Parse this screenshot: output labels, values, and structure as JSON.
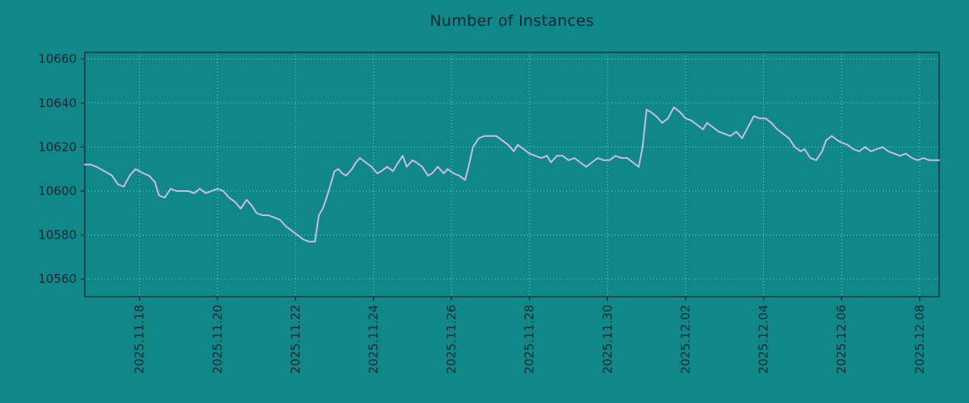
{
  "colors": {
    "background": "#108788",
    "line": "#c8baf0",
    "grid": "#aadcdc",
    "text": "#132730",
    "frame": "#132730"
  },
  "chart_data": {
    "type": "line",
    "title": "Number of Instances",
    "xlabel": "",
    "ylabel": "",
    "grid": true,
    "legend": null,
    "ylim": [
      10552,
      10663
    ],
    "xlim": [
      16.6,
      38.5
    ],
    "yticks": [
      10560,
      10580,
      10600,
      10620,
      10640,
      10660
    ],
    "xticks": [
      {
        "pos": 18,
        "label": "2025.11.18"
      },
      {
        "pos": 20,
        "label": "2025.11.20"
      },
      {
        "pos": 22,
        "label": "2025.11.22"
      },
      {
        "pos": 24,
        "label": "2025.11.24"
      },
      {
        "pos": 26,
        "label": "2025.11.26"
      },
      {
        "pos": 28,
        "label": "2025.11.28"
      },
      {
        "pos": 30,
        "label": "2025.11.30"
      },
      {
        "pos": 32,
        "label": "2025.12.02"
      },
      {
        "pos": 34,
        "label": "2025.12.04"
      },
      {
        "pos": 36,
        "label": "2025.12.06"
      },
      {
        "pos": 38,
        "label": "2025.12.08"
      }
    ],
    "series": [
      {
        "name": "instances",
        "x": [
          16.6,
          16.75,
          16.9,
          17.1,
          17.3,
          17.45,
          17.6,
          17.75,
          17.9,
          18.0,
          18.1,
          18.25,
          18.4,
          18.5,
          18.65,
          18.8,
          18.95,
          19.1,
          19.25,
          19.4,
          19.55,
          19.7,
          19.85,
          20.0,
          20.15,
          20.3,
          20.45,
          20.6,
          20.75,
          20.9,
          21.0,
          21.15,
          21.3,
          21.45,
          21.6,
          21.75,
          21.9,
          22.05,
          22.2,
          22.35,
          22.5,
          22.6,
          22.7,
          22.8,
          22.9,
          23.0,
          23.1,
          23.2,
          23.3,
          23.45,
          23.55,
          23.65,
          23.8,
          23.95,
          24.1,
          24.2,
          24.35,
          24.5,
          24.6,
          24.75,
          24.85,
          25.0,
          25.1,
          25.25,
          25.4,
          25.5,
          25.65,
          25.8,
          25.9,
          26.05,
          26.2,
          26.35,
          26.45,
          26.55,
          26.7,
          26.85,
          27.0,
          27.15,
          27.3,
          27.45,
          27.6,
          27.7,
          27.85,
          28.0,
          28.15,
          28.3,
          28.45,
          28.55,
          28.7,
          28.85,
          29.0,
          29.15,
          29.3,
          29.45,
          29.6,
          29.75,
          29.9,
          30.05,
          30.2,
          30.35,
          30.5,
          30.65,
          30.8,
          30.9,
          31.0,
          31.1,
          31.25,
          31.4,
          31.55,
          31.7,
          31.85,
          32.0,
          32.15,
          32.3,
          32.45,
          32.55,
          32.7,
          32.85,
          33.0,
          33.15,
          33.3,
          33.45,
          33.6,
          33.75,
          33.9,
          34.05,
          34.2,
          34.35,
          34.5,
          34.65,
          34.8,
          34.95,
          35.05,
          35.2,
          35.35,
          35.5,
          35.6,
          35.75,
          35.9,
          36.0,
          36.15,
          36.3,
          36.45,
          36.6,
          36.75,
          36.9,
          37.05,
          37.2,
          37.35,
          37.5,
          37.65,
          37.8,
          37.95,
          38.1,
          38.25,
          38.4,
          38.5
        ],
        "values": [
          10612,
          10612,
          10611,
          10609,
          10607,
          10603,
          10602,
          10607,
          10610,
          10609,
          10608,
          10607,
          10604,
          10598,
          10597,
          10601,
          10600,
          10600,
          10600,
          10599,
          10601,
          10599,
          10600,
          10601,
          10600,
          10597,
          10595,
          10592,
          10596,
          10593,
          10590,
          10589,
          10589,
          10588,
          10587,
          10584,
          10582,
          10580,
          10578,
          10577,
          10577,
          10589,
          10592,
          10597,
          10603,
          10609,
          10610,
          10608,
          10607,
          10610,
          10613,
          10615,
          10613,
          10611,
          10608,
          10609,
          10611,
          10609,
          10612,
          10616,
          10611,
          10614,
          10613,
          10611,
          10607,
          10608,
          10611,
          10608,
          10610,
          10608,
          10607,
          10605,
          10612,
          10620,
          10624,
          10625,
          10625,
          10625,
          10623,
          10621,
          10618,
          10621,
          10619,
          10617,
          10616,
          10615,
          10616,
          10613,
          10616,
          10616,
          10614,
          10615,
          10613,
          10611,
          10613,
          10615,
          10614,
          10614,
          10616,
          10615,
          10615,
          10613,
          10611,
          10620,
          10637,
          10636,
          10634,
          10631,
          10633,
          10638,
          10636,
          10633,
          10632,
          10630,
          10628,
          10631,
          10629,
          10627,
          10626,
          10625,
          10627,
          10624,
          10629,
          10634,
          10633,
          10633,
          10631,
          10628,
          10626,
          10624,
          10620,
          10618,
          10619,
          10615,
          10614,
          10618,
          10623,
          10625,
          10623,
          10622,
          10621,
          10619,
          10618,
          10620,
          10618,
          10619,
          10620,
          10618,
          10617,
          10616,
          10617,
          10615,
          10614,
          10615,
          10614,
          10614,
          10614
        ]
      }
    ]
  }
}
